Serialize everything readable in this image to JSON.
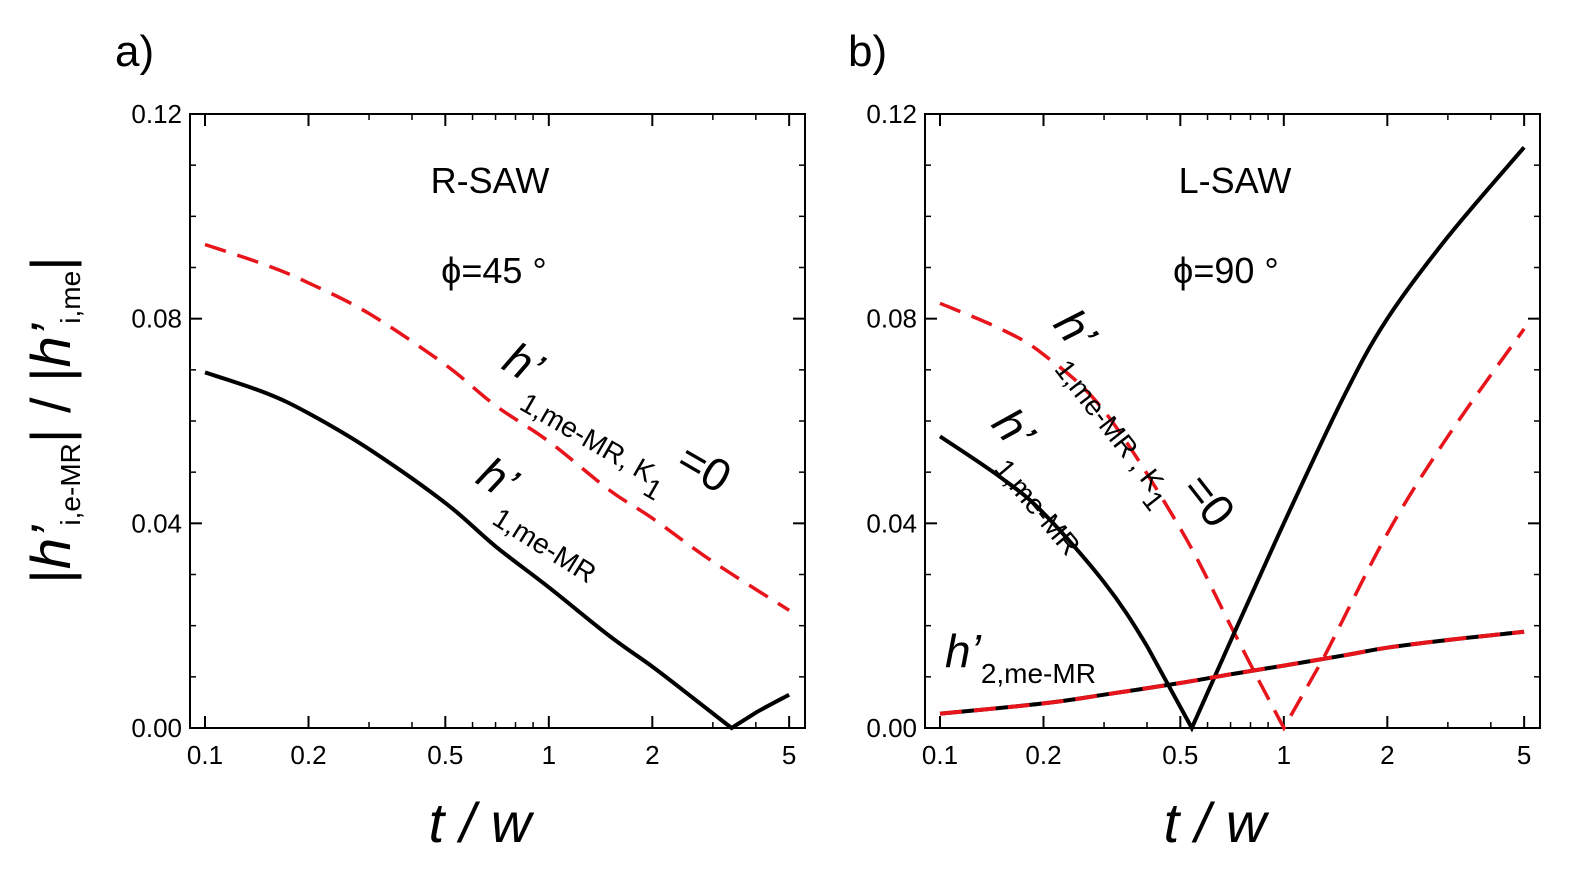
{
  "figure": {
    "ylabel": "|h’i,e-MR| / |h’i,me|",
    "ylabel_parts": {
      "main1": "h’",
      "sub1": "i,e-MR",
      "main2": "h’",
      "sub2": "i,me"
    },
    "xlabel": "t / w"
  },
  "chart_data": [
    {
      "type": "line",
      "panel_label": "a)",
      "title": "R-SAW",
      "angle_label": "ϕ=45 °",
      "xscale": "log",
      "xlim": [
        0.1,
        5.2
      ],
      "ylim": [
        0.0,
        0.12
      ],
      "xticks": [
        0.1,
        0.2,
        0.5,
        1,
        2,
        5
      ],
      "xtick_labels": [
        "0.1",
        "0.2",
        "0.5",
        "1",
        "2",
        "5"
      ],
      "yticks": [
        0.0,
        0.04,
        0.08,
        0.12
      ],
      "ytick_labels": [
        "0.00",
        "0.04",
        "0.08",
        "0.12"
      ],
      "series": [
        {
          "name": "h’1,me-MR, K1=0",
          "label_main": "h’",
          "label_sub": "1,me-MR, K",
          "label_sub2": "1",
          "label_tail": "=0",
          "color": "#e8141b",
          "dash": "dashed",
          "x": [
            0.1,
            0.15,
            0.2,
            0.3,
            0.5,
            0.7,
            1.0,
            1.5,
            2.0,
            3.0,
            5.0
          ],
          "y": [
            0.0945,
            0.0905,
            0.087,
            0.081,
            0.071,
            0.063,
            0.056,
            0.0465,
            0.041,
            0.0325,
            0.023
          ]
        },
        {
          "name": "h’1,me-MR",
          "label_main": "h’",
          "label_sub": "1,me-MR",
          "color": "#000000",
          "dash": "solid",
          "x": [
            0.1,
            0.15,
            0.2,
            0.3,
            0.5,
            0.7,
            1.0,
            1.5,
            2.0,
            2.5,
            3.4,
            4.0,
            5.0
          ],
          "y": [
            0.0695,
            0.0655,
            0.0615,
            0.0545,
            0.044,
            0.0355,
            0.0275,
            0.018,
            0.012,
            0.007,
            0.0,
            0.003,
            0.0065
          ]
        }
      ]
    },
    {
      "type": "line",
      "panel_label": "b)",
      "title": "L-SAW",
      "angle_label": "ϕ=90 °",
      "xscale": "log",
      "xlim": [
        0.1,
        5.2
      ],
      "ylim": [
        0.0,
        0.12
      ],
      "xticks": [
        0.1,
        0.2,
        0.5,
        1,
        2,
        5
      ],
      "xtick_labels": [
        "0.1",
        "0.2",
        "0.5",
        "1",
        "2",
        "5"
      ],
      "yticks": [
        0.0,
        0.04,
        0.08,
        0.12
      ],
      "ytick_labels": [
        "0.00",
        "0.04",
        "0.08",
        "0.12"
      ],
      "series": [
        {
          "name": "h’1,me-MR, K1=0",
          "label_main": "h’",
          "label_sub": "1,me-MR , K",
          "label_sub2": "1",
          "label_tail": "=0",
          "color": "#e8141b",
          "dash": "dashed",
          "x": [
            0.1,
            0.15,
            0.2,
            0.3,
            0.5,
            0.7,
            0.85,
            1.0,
            1.3,
            2.0,
            3.0,
            5.0
          ],
          "y": [
            0.083,
            0.078,
            0.073,
            0.062,
            0.039,
            0.02,
            0.009,
            0.0,
            0.0135,
            0.038,
            0.057,
            0.078
          ]
        },
        {
          "name": "h’1,me-MR",
          "label_main": "h’",
          "label_sub": "1,me-MR",
          "color": "#000000",
          "dash": "solid",
          "x": [
            0.1,
            0.15,
            0.2,
            0.3,
            0.4,
            0.54,
            0.7,
            1.0,
            1.5,
            2.0,
            3.0,
            5.0
          ],
          "y": [
            0.057,
            0.049,
            0.042,
            0.0285,
            0.016,
            0.0,
            0.017,
            0.04,
            0.065,
            0.08,
            0.096,
            0.1135
          ]
        },
        {
          "name": "h’2,me-MR",
          "label_main": "h’",
          "label_sub": "2,me-MR",
          "color": "#000000",
          "color2": "#e8141b",
          "dash": "solid-overlaid-dashed",
          "x": [
            0.1,
            0.2,
            0.3,
            0.5,
            0.7,
            1.0,
            1.5,
            2.0,
            3.0,
            5.0
          ],
          "y": [
            0.0028,
            0.0048,
            0.0065,
            0.0088,
            0.0105,
            0.0122,
            0.0142,
            0.0157,
            0.0172,
            0.0188
          ]
        }
      ]
    }
  ]
}
